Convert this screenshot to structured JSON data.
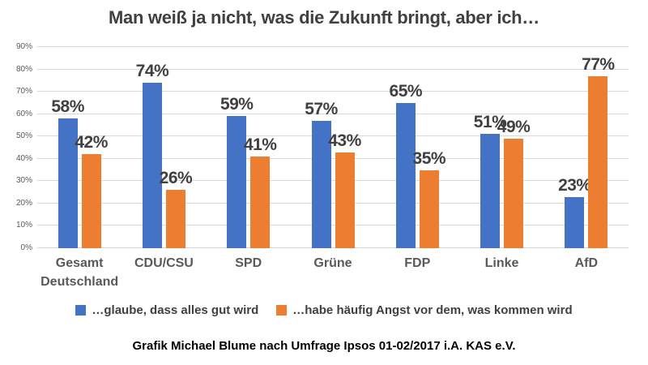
{
  "chart_data": {
    "type": "bar",
    "title": "Man weiß ja nicht, was die Zukunft bringt, aber ich…",
    "categories": [
      "Gesamt Deutschland",
      "CDU/CSU",
      "SPD",
      "Grüne",
      "FDP",
      "Linke",
      "AfD"
    ],
    "series": [
      {
        "name": "…glaube, dass alles gut wird",
        "color": "#4472C4",
        "values": [
          58,
          74,
          59,
          57,
          65,
          51,
          23
        ]
      },
      {
        "name": "…habe häufig Angst vor dem, was kommen wird",
        "color": "#ED7D31",
        "values": [
          42,
          26,
          41,
          43,
          35,
          49,
          77
        ]
      }
    ],
    "ylim": [
      0,
      90
    ],
    "ytick_step": 10,
    "ytick_labels": [
      "0%",
      "10%",
      "20%",
      "30%",
      "40%",
      "50%",
      "60%",
      "70%",
      "80%",
      "90%"
    ],
    "data_label_suffix": "%",
    "grid": true,
    "legend_position": "bottom",
    "gridline_color": "#d9d9d9"
  },
  "caption": "Grafik Michael Blume nach Umfrage Ipsos 01-02/2017 i.A. KAS e.V."
}
